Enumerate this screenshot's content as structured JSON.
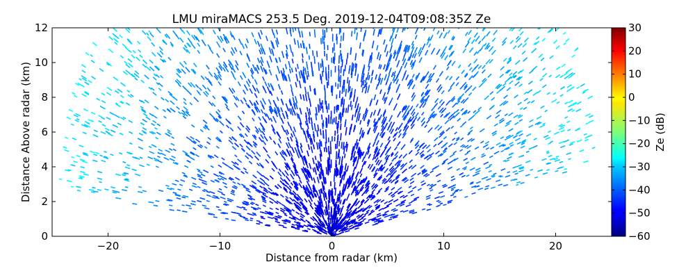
{
  "chart_data": {
    "type": "scatter",
    "title": "LMU miraMACS 253.5 Deg. 2019-12-04T09:08:35Z  Ze",
    "xlabel": "Distance from radar (km)",
    "ylabel": "Distance Above radar  (km)",
    "xlim": [
      -25,
      25
    ],
    "ylim": [
      0,
      12
    ],
    "xticks": [
      "−20",
      "−10",
      "0",
      "10",
      "20"
    ],
    "xtick_values": [
      -20,
      -10,
      0,
      10,
      20
    ],
    "yticks": [
      "0",
      "2",
      "4",
      "6",
      "8",
      "10",
      "12"
    ],
    "ytick_values": [
      0,
      2,
      4,
      6,
      8,
      10,
      12
    ],
    "grid": false,
    "radar": {
      "elevation_range_deg": [
        10,
        174
      ],
      "max_range_km": 24.5,
      "ze_field": "Ze(range): about -52 dB near the radar rising to about -28 dB at 24 km range"
    },
    "colorbar": {
      "label": "Ze (dB)",
      "range": [
        -60,
        30
      ],
      "ticks": [
        "−60",
        "−50",
        "−40",
        "−30",
        "−20",
        "−10",
        "0",
        "10",
        "20",
        "30"
      ],
      "tick_values": [
        -60,
        -50,
        -40,
        -30,
        -20,
        -10,
        0,
        10,
        20,
        30
      ],
      "colormap": "jet"
    }
  }
}
